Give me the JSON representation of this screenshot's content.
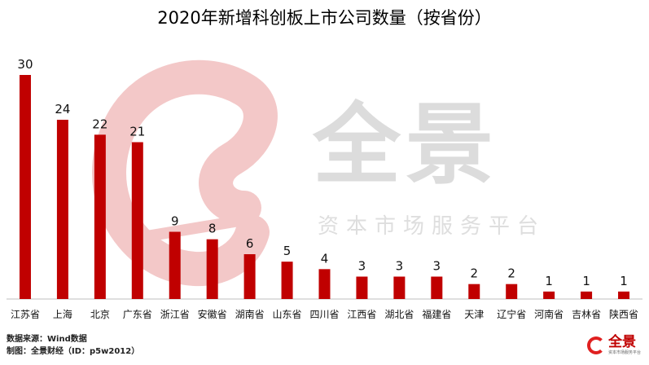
{
  "title": "2020年新增科创板上市公司数量（按省份）",
  "watermark": {
    "brand": "全景",
    "tagline": "资本市场服务平台"
  },
  "footer": {
    "source": "数据来源：Wind数据",
    "producer": "制图：全景财经（ID：p5w2012）"
  },
  "logo": {
    "name": "全景",
    "tagline": "资本市场服务平台"
  },
  "colors": {
    "bar": "#c00000",
    "watermark_red": "#f3c8c8"
  },
  "chart_data": {
    "type": "bar",
    "title": "2020年新增科创板上市公司数量（按省份）",
    "categories": [
      "江苏省",
      "上海",
      "北京",
      "广东省",
      "浙江省",
      "安徽省",
      "湖南省",
      "山东省",
      "四川省",
      "江西省",
      "湖北省",
      "福建省",
      "天津",
      "辽宁省",
      "河南省",
      "吉林省",
      "陕西省"
    ],
    "values": [
      30,
      24,
      22,
      21,
      9,
      8,
      6,
      5,
      4,
      3,
      3,
      3,
      2,
      2,
      1,
      1,
      1
    ],
    "xlabel": "",
    "ylabel": "",
    "ylim": [
      0,
      30
    ],
    "grid": false,
    "data_labels": true
  }
}
